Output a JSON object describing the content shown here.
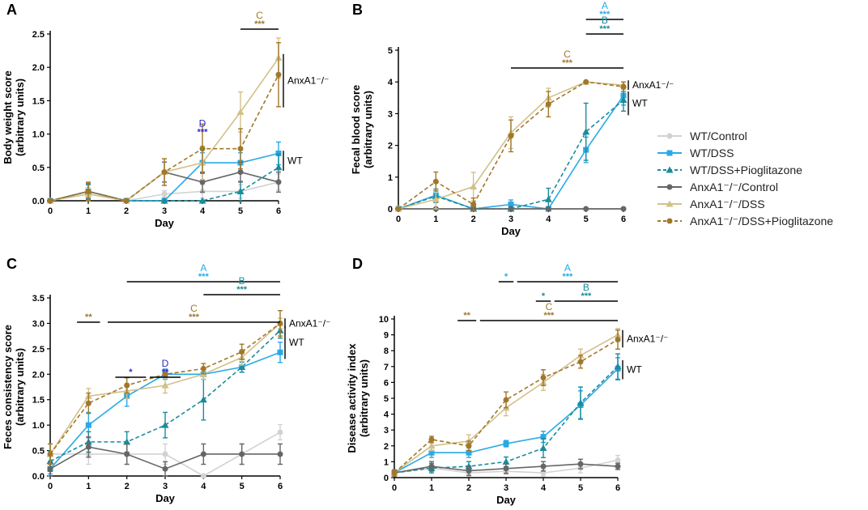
{
  "figure": {
    "legend": [
      {
        "label": "WT/Control",
        "color": "#d2d2d2",
        "marker": "circle",
        "dash": false
      },
      {
        "label": "WT/DSS",
        "color": "#29a9e6",
        "marker": "square",
        "dash": false
      },
      {
        "label": "WT/DSS+Pioglitazone",
        "color": "#1a8c9c",
        "marker": "triangle",
        "dash": true
      },
      {
        "label": "AnxA1⁻/⁻/Control",
        "color": "#666666",
        "marker": "circle",
        "dash": false
      },
      {
        "label": "AnxA1⁻/⁻/DSS",
        "color": "#d2c089",
        "marker": "triangle",
        "dash": false
      },
      {
        "label": "AnxA1⁻/⁻/DSS+Pioglitazone",
        "color": "#a0782a",
        "marker": "circle",
        "dash": true
      }
    ]
  },
  "chart_data": [
    {
      "panel": "A",
      "type": "line",
      "xlabel": "Day",
      "ylabel": "Body weight score\n(arbitrary units)",
      "x": [
        0,
        1,
        2,
        3,
        4,
        5,
        6
      ],
      "ylim": [
        0,
        2.5
      ],
      "yticks": [
        0.0,
        0.5,
        1.0,
        1.5,
        2.0,
        2.5
      ],
      "ytick_labels": [
        "0.0",
        "0.5",
        "1.0",
        "1.5",
        "2.0",
        "2.5"
      ],
      "series": [
        {
          "name": "WT/Control",
          "values": [
            0,
            0.1,
            0,
            0.1,
            0.14,
            0.14,
            0.28
          ],
          "err": [
            0,
            0.05,
            0,
            0.05,
            0.1,
            0.1,
            0.12
          ]
        },
        {
          "name": "WT/DSS",
          "values": [
            0,
            0.14,
            0,
            0,
            0.57,
            0.57,
            0.71
          ],
          "err": [
            0,
            0.1,
            0,
            0,
            0.15,
            0.15,
            0.17
          ]
        },
        {
          "name": "WT/DSS+Pioglitazone",
          "values": [
            0,
            0.14,
            0,
            0,
            0,
            0.14,
            0.5
          ],
          "err": [
            0,
            0.1,
            0,
            0,
            0,
            0.15,
            0.2
          ]
        },
        {
          "name": "AnxA1-/-/Control",
          "values": [
            0,
            0.14,
            0,
            0.43,
            0.28,
            0.43,
            0.28
          ],
          "err": [
            0,
            0.12,
            0,
            0.15,
            0.15,
            0.15,
            0.15
          ]
        },
        {
          "name": "AnxA1-/-/DSS",
          "values": [
            0,
            0.1,
            0,
            0.43,
            0.57,
            1.33,
            2.14
          ],
          "err": [
            0,
            0.1,
            0,
            0.2,
            0.25,
            0.3,
            0.3
          ]
        },
        {
          "name": "AnxA1-/-/DSS+Pioglitazone",
          "values": [
            0,
            0.14,
            0,
            0.43,
            0.78,
            0.78,
            1.89
          ],
          "err": [
            0,
            0.14,
            0,
            0.2,
            0.37,
            0.3,
            0.48
          ]
        }
      ],
      "annotations": [
        {
          "letter": "C",
          "stars": "***",
          "color": "#a0782a",
          "x1": 5,
          "x2": 6,
          "bar": true
        },
        {
          "letter": "D",
          "stars": "***",
          "color": "#2a2ad0",
          "x1": 4,
          "x2": 4,
          "bar": false
        }
      ],
      "brackets": [
        {
          "label": "AnxA1⁻/⁻",
          "y1": 1.4,
          "y2": 2.2
        },
        {
          "label": "WT",
          "y1": 0.45,
          "y2": 0.75
        }
      ]
    },
    {
      "panel": "B",
      "type": "line",
      "xlabel": "Day",
      "ylabel": "Fecal blood score\n(arbitrary units)",
      "x": [
        0,
        1,
        2,
        3,
        4,
        5,
        6
      ],
      "ylim": [
        0,
        5
      ],
      "yticks": [
        0,
        1,
        2,
        3,
        4,
        5
      ],
      "ytick_labels": [
        "0",
        "1",
        "2",
        "3",
        "4",
        "5"
      ],
      "series": [
        {
          "name": "WT/Control",
          "values": [
            0,
            0,
            0,
            0,
            0,
            0,
            0
          ],
          "err": [
            0,
            0,
            0,
            0,
            0,
            0,
            0
          ]
        },
        {
          "name": "WT/DSS",
          "values": [
            0,
            0.43,
            0,
            0.14,
            0,
            1.86,
            3.57
          ],
          "err": [
            0,
            0.2,
            0,
            0.14,
            0,
            0.4,
            0.3
          ]
        },
        {
          "name": "WT/DSS+Pioglitazone",
          "values": [
            0,
            0.4,
            0,
            0,
            0.3,
            2.43,
            3.43
          ],
          "err": [
            0,
            0.2,
            0,
            0,
            0.35,
            0.9,
            0.35
          ]
        },
        {
          "name": "AnxA1-/-/Control",
          "values": [
            0,
            0,
            0,
            0,
            0,
            0,
            0
          ],
          "err": [
            0,
            0,
            0,
            0,
            0,
            0,
            0
          ]
        },
        {
          "name": "AnxA1-/-/DSS",
          "values": [
            0,
            0.3,
            0.7,
            2.4,
            3.5,
            4.0,
            3.9
          ],
          "err": [
            0,
            0.3,
            0.45,
            0.5,
            0.3,
            0,
            0.1
          ]
        },
        {
          "name": "AnxA1-/-/DSS+Pioglitazone",
          "values": [
            0,
            0.86,
            0.14,
            2.3,
            3.3,
            4.0,
            3.85
          ],
          "err": [
            0,
            0.3,
            0.2,
            0.5,
            0.4,
            0,
            0.15
          ]
        }
      ],
      "annotations": [
        {
          "letter": "A",
          "stars": "***",
          "color": "#29a9e6",
          "x1": 5,
          "x2": 6,
          "bar": true
        },
        {
          "letter": "B",
          "stars": "***",
          "color": "#1a8c9c",
          "x1": 5,
          "x2": 6,
          "bar": true
        },
        {
          "letter": "C",
          "stars": "***",
          "color": "#a0782a",
          "x1": 3,
          "x2": 6,
          "bar": true
        }
      ],
      "brackets": [
        {
          "label": "AnxA1⁻/⁻",
          "y1": 3.75,
          "y2": 4.05
        },
        {
          "label": "WT",
          "y1": 2.95,
          "y2": 3.7
        }
      ]
    },
    {
      "panel": "C",
      "type": "line",
      "xlabel": "Day",
      "ylabel": "Feces consistency score\n(arbitrary units)",
      "x": [
        0,
        1,
        2,
        3,
        4,
        5,
        6
      ],
      "ylim": [
        0,
        3.5
      ],
      "yticks": [
        0.0,
        0.5,
        1.0,
        1.5,
        2.0,
        2.5,
        3.0,
        3.5
      ],
      "ytick_labels": [
        "0.0",
        "0.5",
        "1.0",
        "1.5",
        "2.0",
        "2.5",
        "3.0",
        "3.5"
      ],
      "series": [
        {
          "name": "WT/Control",
          "values": [
            0.43,
            0.43,
            0.43,
            0.43,
            0,
            0.43,
            0.86
          ],
          "err": [
            0.2,
            0.2,
            0.2,
            0.2,
            0,
            0.2,
            0.15
          ]
        },
        {
          "name": "WT/DSS",
          "values": [
            0.14,
            1.0,
            1.57,
            2.0,
            2.0,
            2.14,
            2.43
          ],
          "err": [
            0.1,
            0.25,
            0.2,
            0.1,
            0.1,
            0.1,
            0.2
          ]
        },
        {
          "name": "WT/DSS+Pioglitazone",
          "values": [
            0.29,
            0.67,
            0.67,
            1.0,
            1.5,
            2.14,
            2.86
          ],
          "err": [
            0.2,
            0.2,
            0.2,
            0.25,
            0.4,
            0.1,
            0.15
          ]
        },
        {
          "name": "AnxA1-/-/Control",
          "values": [
            0.14,
            0.57,
            0.43,
            0.14,
            0.43,
            0.43,
            0.43
          ],
          "err": [
            0.14,
            0.2,
            0.2,
            0.14,
            0.2,
            0.2,
            0.2
          ]
        },
        {
          "name": "AnxA1-/-/DSS",
          "values": [
            0.43,
            1.57,
            1.67,
            1.78,
            2.0,
            2.33,
            3.0
          ],
          "err": [
            0.2,
            0.15,
            0.15,
            0.15,
            0.1,
            0.15,
            0.1
          ]
        },
        {
          "name": "AnxA1-/-/DSS+Pioglitazone",
          "values": [
            0.43,
            1.43,
            1.78,
            2.0,
            2.11,
            2.44,
            3.0
          ],
          "err": [
            0.2,
            0.2,
            0.15,
            0,
            0.1,
            0.15,
            0.25
          ]
        }
      ],
      "annotations": [
        {
          "letter": "A",
          "stars": "***",
          "color": "#29a9e6",
          "x1": 2,
          "x2": 6,
          "bar": true
        },
        {
          "letter": "B",
          "stars": "***",
          "color": "#1a8c9c",
          "x1": 4,
          "x2": 6,
          "bar": true
        },
        {
          "letter": "C",
          "stars": "***",
          "color": "#a0782a",
          "x1": 1.5,
          "x2": 6,
          "bar": true
        },
        {
          "letter": "",
          "stars": "**",
          "color": "#a0782a",
          "x1": 0.7,
          "x2": 1.3,
          "bar": true
        },
        {
          "letter": "",
          "stars": "*",
          "color": "#2a2ad0",
          "x1": 1.7,
          "x2": 2.5,
          "bar": true
        },
        {
          "letter": "D",
          "stars": "**",
          "color": "#2a2ad0",
          "x1": 2.6,
          "x2": 3.4,
          "bar": true
        }
      ],
      "brackets": [
        {
          "label": "AnxA1⁻/⁻",
          "y1": 2.9,
          "y2": 3.1
        },
        {
          "label": "WT",
          "y1": 2.3,
          "y2": 2.95
        }
      ]
    },
    {
      "panel": "D",
      "type": "line",
      "xlabel": "Day",
      "ylabel": "Disease activity index\n(arbitrary units)",
      "x": [
        0,
        1,
        2,
        3,
        4,
        5,
        6
      ],
      "ylim": [
        0,
        10
      ],
      "yticks": [
        0,
        1,
        2,
        3,
        4,
        5,
        6,
        7,
        8,
        9,
        10
      ],
      "ytick_labels": [
        "0",
        "1",
        "2",
        "3",
        "4",
        "5",
        "6",
        "7",
        "8",
        "9",
        "10"
      ],
      "series": [
        {
          "name": "WT/Control",
          "values": [
            0.3,
            0.6,
            0.3,
            0.4,
            0.3,
            0.6,
            1.1
          ],
          "err": [
            0.2,
            0.2,
            0.2,
            0.2,
            0.2,
            0.3,
            0.3
          ]
        },
        {
          "name": "WT/DSS",
          "values": [
            0.3,
            1.57,
            1.57,
            2.14,
            2.57,
            4.57,
            6.86
          ],
          "err": [
            0.2,
            0.3,
            0.3,
            0.2,
            0.35,
            0.9,
            0.7
          ]
        },
        {
          "name": "WT/DSS+Pioglitazone",
          "values": [
            0.3,
            0.6,
            0.71,
            1.0,
            1.86,
            4.71,
            7.0
          ],
          "err": [
            0.2,
            0.3,
            0.3,
            0.3,
            0.6,
            1.0,
            0.8
          ]
        },
        {
          "name": "AnxA1-/-/Control",
          "values": [
            0.3,
            0.71,
            0.43,
            0.57,
            0.71,
            0.86,
            0.71
          ],
          "err": [
            0.2,
            0.3,
            0.3,
            0.3,
            0.3,
            0.3,
            0.2
          ]
        },
        {
          "name": "AnxA1-/-/DSS",
          "values": [
            0.3,
            2.0,
            2.3,
            4.4,
            6.0,
            7.7,
            9.0
          ],
          "err": [
            0.2,
            0.3,
            0.4,
            0.5,
            0.5,
            0.4,
            0.4
          ]
        },
        {
          "name": "AnxA1-/-/DSS+Pioglitazone",
          "values": [
            0.3,
            2.4,
            2.0,
            4.9,
            6.3,
            7.3,
            8.7
          ],
          "err": [
            0.2,
            0.2,
            0.3,
            0.5,
            0.5,
            0.4,
            0.6
          ]
        }
      ],
      "annotations": [
        {
          "letter": "",
          "stars": "*",
          "color": "#29a9e6",
          "x1": 2.8,
          "x2": 3.2,
          "bar": true
        },
        {
          "letter": "A",
          "stars": "***",
          "color": "#29a9e6",
          "x1": 3.3,
          "x2": 6,
          "bar": true
        },
        {
          "letter": "",
          "stars": "*",
          "color": "#1a8c9c",
          "x1": 3.8,
          "x2": 4.2,
          "bar": true
        },
        {
          "letter": "B",
          "stars": "***",
          "color": "#1a8c9c",
          "x1": 4.3,
          "x2": 6,
          "bar": true
        },
        {
          "letter": "",
          "stars": "**",
          "color": "#a0782a",
          "x1": 1.7,
          "x2": 2.2,
          "bar": true
        },
        {
          "letter": "C",
          "stars": "***",
          "color": "#a0782a",
          "x1": 2.3,
          "x2": 6,
          "bar": true
        }
      ],
      "brackets": [
        {
          "label": "AnxA1⁻/⁻",
          "y1": 8.2,
          "y2": 9.3
        },
        {
          "label": "WT",
          "y1": 6.2,
          "y2": 7.4
        }
      ]
    }
  ]
}
